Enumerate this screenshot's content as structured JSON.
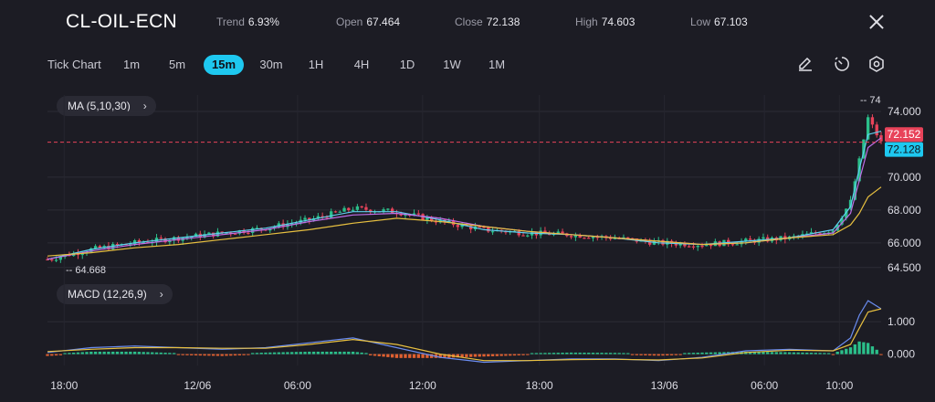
{
  "header": {
    "symbol": "CL-OIL-ECN",
    "stats": [
      {
        "label": "Trend",
        "value": "6.93%"
      },
      {
        "label": "Open",
        "value": "67.464"
      },
      {
        "label": "Close",
        "value": "72.138"
      },
      {
        "label": "High",
        "value": "74.603"
      },
      {
        "label": "Low",
        "value": "67.103"
      }
    ]
  },
  "toolbar": {
    "chart_type": "Tick Chart",
    "timeframes": [
      "1m",
      "5m",
      "15m",
      "30m",
      "1H",
      "4H",
      "1D",
      "1W",
      "1M"
    ],
    "selected_timeframe": "15m",
    "tools": [
      "pencil-icon",
      "timer-icon",
      "settings-icon"
    ]
  },
  "indicators": {
    "ma_label": "MA (5,10,30)",
    "macd_label": "MACD (12,26,9)"
  },
  "colors": {
    "background": "#1c1c24",
    "bull": "#2bbf8a",
    "bear": "#e8435a",
    "ma5": "#5fd0f0",
    "ma10": "#c06ee8",
    "ma30": "#e8c040",
    "macd_line": "#6a8cf0",
    "signal_line": "#e8c040",
    "hist_pos": "#2bbf8a",
    "hist_neg": "#e06030",
    "accent": "#1ec8f0"
  },
  "chart_data": {
    "type": "line",
    "title": "CL-OIL-ECN",
    "x_tick_labels": [
      "18:00",
      "12/06",
      "06:00",
      "12:00",
      "18:00",
      "13/06",
      "06:00",
      "10:00"
    ],
    "price_panel": {
      "y_ticks": [
        "74.000",
        "70.000",
        "68.000",
        "66.000",
        "64.500"
      ],
      "y_tick_values": [
        74.0,
        70.0,
        68.0,
        66.0,
        64.5
      ],
      "ylim": [
        64.1,
        75.0
      ],
      "high_marker": "74",
      "low_marker": "64.668",
      "price_labels": [
        {
          "text": "72.152",
          "value": 72.152,
          "color": "#e8435a"
        },
        {
          "text": "72.128",
          "value": 72.128,
          "color": "#1ec8f0"
        }
      ],
      "current_price": 72.128,
      "grid": true
    },
    "series": [
      {
        "name": "MA5",
        "color": "#5fd0f0",
        "x": [
          0,
          10,
          20,
          30,
          40,
          50,
          60,
          70,
          80,
          90,
          100,
          110,
          120,
          130,
          140,
          150,
          160,
          170,
          180,
          184,
          186,
          188,
          191
        ],
        "values": [
          65.0,
          65.6,
          66.0,
          66.3,
          66.6,
          66.9,
          67.4,
          67.9,
          67.9,
          67.4,
          66.8,
          66.6,
          66.5,
          66.3,
          66.0,
          65.9,
          66.1,
          66.3,
          66.8,
          68.2,
          70.5,
          72.6,
          72.8
        ]
      },
      {
        "name": "MA10",
        "color": "#c06ee8",
        "x": [
          0,
          10,
          20,
          30,
          40,
          50,
          60,
          70,
          80,
          90,
          100,
          110,
          120,
          130,
          140,
          150,
          160,
          170,
          180,
          184,
          186,
          188,
          191
        ],
        "values": [
          65.0,
          65.5,
          65.9,
          66.2,
          66.5,
          66.8,
          67.3,
          67.7,
          67.8,
          67.5,
          67.0,
          66.7,
          66.5,
          66.3,
          66.1,
          65.9,
          66.0,
          66.3,
          66.6,
          67.8,
          69.8,
          71.8,
          72.4
        ]
      },
      {
        "name": "MA30",
        "color": "#e8c040",
        "x": [
          0,
          10,
          20,
          30,
          40,
          50,
          60,
          70,
          80,
          90,
          100,
          110,
          120,
          130,
          140,
          150,
          160,
          170,
          180,
          184,
          186,
          188,
          191
        ],
        "values": [
          65.2,
          65.4,
          65.7,
          65.9,
          66.2,
          66.5,
          66.8,
          67.2,
          67.5,
          67.3,
          67.0,
          66.7,
          66.5,
          66.3,
          66.1,
          65.9,
          66.0,
          66.3,
          66.5,
          67.1,
          67.8,
          68.8,
          69.4
        ]
      }
    ],
    "candles": {
      "x_range": [
        0,
        191
      ],
      "close": [
        65.0,
        65.6,
        66.0,
        66.3,
        66.6,
        66.9,
        67.4,
        68.1,
        67.9,
        67.3,
        66.8,
        66.6,
        66.5,
        66.3,
        66.0,
        65.9,
        66.1,
        66.3,
        66.8,
        68.5,
        71.0,
        73.6,
        72.1
      ],
      "x": [
        0,
        10,
        20,
        30,
        40,
        50,
        60,
        70,
        80,
        90,
        100,
        110,
        120,
        130,
        140,
        150,
        160,
        170,
        180,
        184,
        186,
        188,
        191
      ]
    },
    "macd_panel": {
      "y_ticks": [
        "1.000",
        "0.000"
      ],
      "y_tick_values": [
        1.0,
        0.0
      ],
      "ylim": [
        -0.35,
        1.85
      ],
      "macd": {
        "x": [
          0,
          10,
          20,
          30,
          40,
          50,
          60,
          70,
          80,
          90,
          100,
          110,
          120,
          130,
          140,
          150,
          160,
          170,
          180,
          184,
          186,
          188,
          191
        ],
        "values": [
          0.05,
          0.2,
          0.25,
          0.2,
          0.15,
          0.2,
          0.35,
          0.5,
          0.2,
          -0.1,
          -0.25,
          -0.2,
          -0.15,
          -0.15,
          -0.2,
          -0.1,
          0.1,
          0.15,
          0.1,
          0.5,
          1.2,
          1.65,
          1.4
        ]
      },
      "signal": {
        "x": [
          0,
          10,
          20,
          30,
          40,
          50,
          60,
          70,
          80,
          90,
          100,
          110,
          120,
          130,
          140,
          150,
          160,
          170,
          180,
          184,
          186,
          188,
          191
        ],
        "values": [
          0.08,
          0.15,
          0.2,
          0.2,
          0.18,
          0.18,
          0.3,
          0.45,
          0.3,
          0.0,
          -0.2,
          -0.2,
          -0.17,
          -0.16,
          -0.18,
          -0.12,
          0.05,
          0.12,
          0.1,
          0.3,
          0.8,
          1.3,
          1.4
        ]
      },
      "histogram_peak": 0.5
    }
  }
}
